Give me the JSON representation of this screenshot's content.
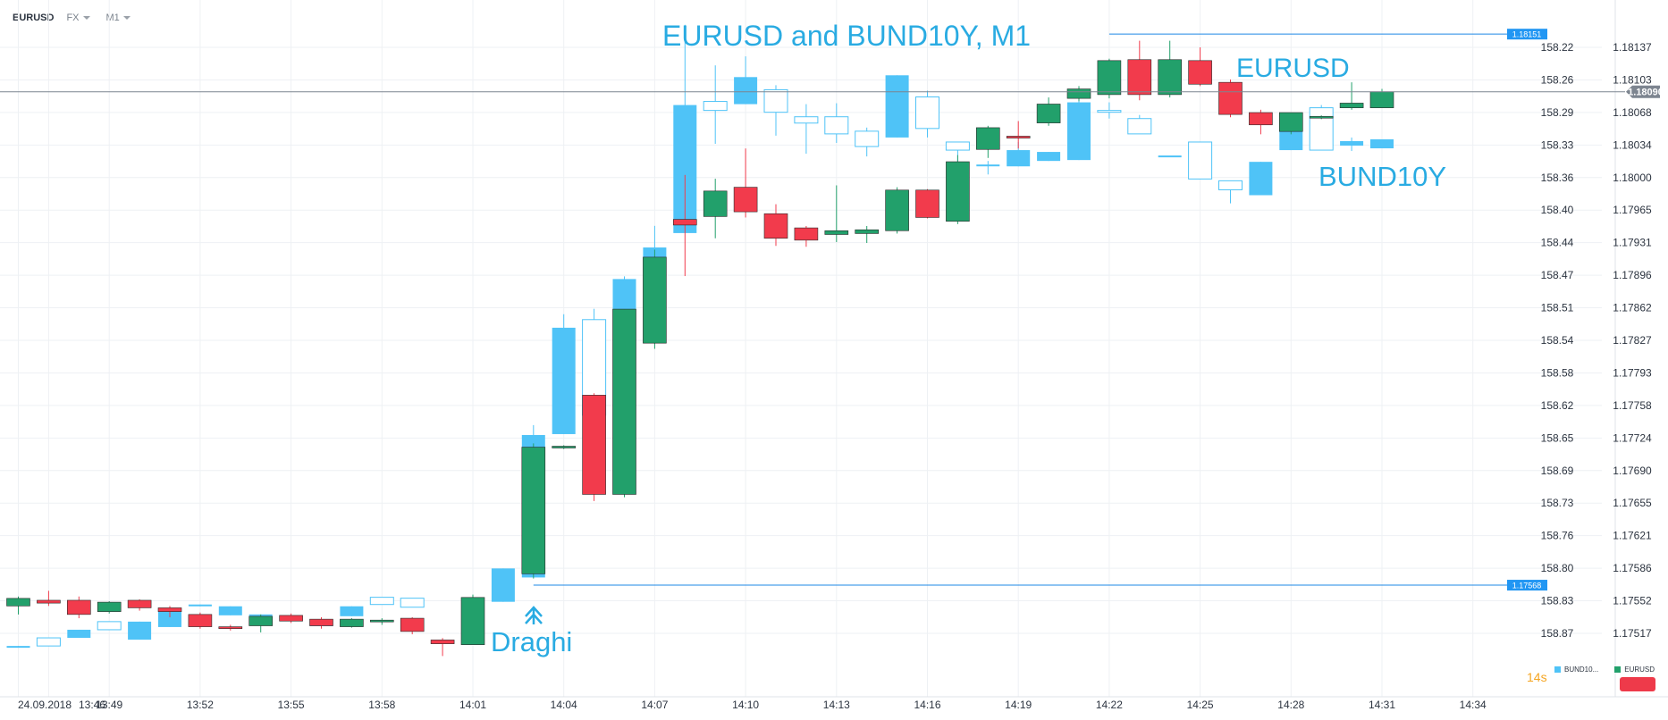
{
  "topbar": {
    "symbol": "EURUSD",
    "market": "FX",
    "timeframe": "M1"
  },
  "annotations": {
    "title": "EURUSD and BUND10Y, M1",
    "eurusd": "EURUSD",
    "bund": "BUND10Y",
    "draghi": "Draghi",
    "arrow_icon": "up-arrow-icon"
  },
  "timer": {
    "value": "14",
    "unit": "s"
  },
  "colors": {
    "up": "#22a06b",
    "down": "#f23b4c",
    "bund": "#4fc3f7",
    "bund_hollow": "#4fc3f7",
    "line": "#1e88e5",
    "grid": "#eef1f4"
  },
  "chart_data": {
    "type": "candlestick",
    "title": "EURUSD and BUND10Y, M1",
    "x_ticks": [
      {
        "i": 0,
        "label": "24.09.2018"
      },
      {
        "i": 1,
        "label": "13:46"
      },
      {
        "i": 3,
        "label": "13:49"
      },
      {
        "i": 6,
        "label": "13:52"
      },
      {
        "i": 9,
        "label": "13:55"
      },
      {
        "i": 12,
        "label": "13:58"
      },
      {
        "i": 15,
        "label": "14:01"
      },
      {
        "i": 18,
        "label": "14:04"
      },
      {
        "i": 21,
        "label": "14:07"
      },
      {
        "i": 24,
        "label": "14:10"
      },
      {
        "i": 27,
        "label": "14:13"
      },
      {
        "i": 30,
        "label": "14:16"
      },
      {
        "i": 33,
        "label": "14:19"
      },
      {
        "i": 36,
        "label": "14:22"
      },
      {
        "i": 39,
        "label": "14:25"
      },
      {
        "i": 42,
        "label": "14:28"
      },
      {
        "i": 45,
        "label": "14:31"
      },
      {
        "i": 48,
        "label": "14:34"
      }
    ],
    "y_ticks_bund": [
      "158.22",
      "158.26",
      "158.29",
      "158.33",
      "158.36",
      "158.40",
      "158.44",
      "158.47",
      "158.51",
      "158.54",
      "158.58",
      "158.62",
      "158.65",
      "158.69",
      "158.73",
      "158.76",
      "158.80",
      "158.83",
      "158.87"
    ],
    "y_ticks_eurusd": [
      "1.18137",
      "1.18103",
      "1.18068",
      "1.18034",
      "1.18000",
      "1.17965",
      "1.17931",
      "1.17896",
      "1.17862",
      "1.17827",
      "1.17793",
      "1.17758",
      "1.17724",
      "1.17690",
      "1.17655",
      "1.17621",
      "1.17586",
      "1.17552",
      "1.17517"
    ],
    "eurusd_range": [
      1.17517,
      1.18137
    ],
    "horizontal_lines": [
      {
        "value": 1.18151,
        "label": "1.18151",
        "from_i": 36
      },
      {
        "value": 1.17568,
        "label": "1.17568",
        "from_i": 17
      }
    ],
    "current_price": {
      "value": 1.1809,
      "label": "1.18090"
    },
    "legend": [
      {
        "name": "BUND10...",
        "color": "#4fc3f7"
      },
      {
        "name": "EURUSD",
        "color": "#22a06b"
      }
    ],
    "eurusd_series": [
      {
        "i": 0,
        "o": 1.17546,
        "h": 1.17556,
        "l": 1.17537,
        "c": 1.17554
      },
      {
        "i": 1,
        "o": 1.17552,
        "h": 1.17562,
        "l": 1.17546,
        "c": 1.17549
      },
      {
        "i": 2,
        "o": 1.17552,
        "h": 1.17556,
        "l": 1.17533,
        "c": 1.17537
      },
      {
        "i": 3,
        "o": 1.1754,
        "h": 1.17551,
        "l": 1.17538,
        "c": 1.1755
      },
      {
        "i": 4,
        "o": 1.17552,
        "h": 1.17553,
        "l": 1.17541,
        "c": 1.17544
      },
      {
        "i": 5,
        "o": 1.17544,
        "h": 1.17546,
        "l": 1.17534,
        "c": 1.1754
      },
      {
        "i": 6,
        "o": 1.17537,
        "h": 1.17539,
        "l": 1.17522,
        "c": 1.17524
      },
      {
        "i": 7,
        "o": 1.17524,
        "h": 1.17526,
        "l": 1.1752,
        "c": 1.17522
      },
      {
        "i": 8,
        "o": 1.17525,
        "h": 1.17537,
        "l": 1.17518,
        "c": 1.17535
      },
      {
        "i": 9,
        "o": 1.17536,
        "h": 1.17538,
        "l": 1.17528,
        "c": 1.1753
      },
      {
        "i": 10,
        "o": 1.17532,
        "h": 1.17534,
        "l": 1.17522,
        "c": 1.17525
      },
      {
        "i": 11,
        "o": 1.17524,
        "h": 1.17533,
        "l": 1.17523,
        "c": 1.17532
      },
      {
        "i": 12,
        "o": 1.1753,
        "h": 1.17533,
        "l": 1.17526,
        "c": 1.17531
      },
      {
        "i": 13,
        "o": 1.17533,
        "h": 1.17534,
        "l": 1.17516,
        "c": 1.17519
      },
      {
        "i": 14,
        "o": 1.1751,
        "h": 1.17512,
        "l": 1.17493,
        "c": 1.17506
      },
      {
        "i": 15,
        "o": 1.17505,
        "h": 1.17558,
        "l": 1.17505,
        "c": 1.17555
      },
      {
        "i": 17,
        "o": 1.1758,
        "h": 1.17718,
        "l": 1.17575,
        "c": 1.17714
      },
      {
        "i": 18,
        "o": 1.17714,
        "h": 1.17716,
        "l": 1.17712,
        "c": 1.17715
      },
      {
        "i": 19,
        "o": 1.17769,
        "h": 1.17771,
        "l": 1.17657,
        "c": 1.17664
      },
      {
        "i": 20,
        "o": 1.17664,
        "h": 1.1786,
        "l": 1.17661,
        "c": 1.1786
      },
      {
        "i": 21,
        "o": 1.17824,
        "h": 1.17923,
        "l": 1.17818,
        "c": 1.17915
      },
      {
        "i": 22,
        "o": 1.17955,
        "h": 1.18002,
        "l": 1.17895,
        "c": 1.17949
      },
      {
        "i": 23,
        "o": 1.17958,
        "h": 1.17998,
        "l": 1.17935,
        "c": 1.17985
      },
      {
        "i": 24,
        "o": 1.17989,
        "h": 1.1803,
        "l": 1.17957,
        "c": 1.17963
      },
      {
        "i": 25,
        "o": 1.17961,
        "h": 1.17971,
        "l": 1.17927,
        "c": 1.17935
      },
      {
        "i": 26,
        "o": 1.17946,
        "h": 1.17948,
        "l": 1.17926,
        "c": 1.17933
      },
      {
        "i": 27,
        "o": 1.17939,
        "h": 1.17991,
        "l": 1.17931,
        "c": 1.17943
      },
      {
        "i": 28,
        "o": 1.1794,
        "h": 1.17948,
        "l": 1.1793,
        "c": 1.17944
      },
      {
        "i": 29,
        "o": 1.17943,
        "h": 1.17989,
        "l": 1.1794,
        "c": 1.17986
      },
      {
        "i": 30,
        "o": 1.17986,
        "h": 1.17987,
        "l": 1.17956,
        "c": 1.17957
      },
      {
        "i": 31,
        "o": 1.17953,
        "h": 1.18023,
        "l": 1.1795,
        "c": 1.18016
      },
      {
        "i": 32,
        "o": 1.18029,
        "h": 1.18054,
        "l": 1.1802,
        "c": 1.18052
      },
      {
        "i": 33,
        "o": 1.18043,
        "h": 1.18059,
        "l": 1.1803,
        "c": 1.18041
      },
      {
        "i": 34,
        "o": 1.18057,
        "h": 1.18084,
        "l": 1.18054,
        "c": 1.18077
      },
      {
        "i": 35,
        "o": 1.18083,
        "h": 1.18096,
        "l": 1.1808,
        "c": 1.18093
      },
      {
        "i": 36,
        "o": 1.18087,
        "h": 1.18125,
        "l": 1.18083,
        "c": 1.18123
      },
      {
        "i": 37,
        "o": 1.18124,
        "h": 1.18144,
        "l": 1.18081,
        "c": 1.18087
      },
      {
        "i": 38,
        "o": 1.18087,
        "h": 1.18144,
        "l": 1.18084,
        "c": 1.18124
      },
      {
        "i": 39,
        "o": 1.18123,
        "h": 1.18137,
        "l": 1.18096,
        "c": 1.18098
      },
      {
        "i": 40,
        "o": 1.181,
        "h": 1.18103,
        "l": 1.18063,
        "c": 1.18066
      },
      {
        "i": 41,
        "o": 1.18068,
        "h": 1.18071,
        "l": 1.18045,
        "c": 1.18055
      },
      {
        "i": 42,
        "o": 1.18048,
        "h": 1.18068,
        "l": 1.18045,
        "c": 1.18068
      },
      {
        "i": 43,
        "o": 1.18063,
        "h": 1.18065,
        "l": 1.18061,
        "c": 1.18064
      },
      {
        "i": 44,
        "o": 1.18073,
        "h": 1.181,
        "l": 1.18071,
        "c": 1.18078
      },
      {
        "i": 45,
        "o": 1.18073,
        "h": 1.18093,
        "l": 1.18073,
        "c": 1.1809
      }
    ],
    "bund_series": [
      {
        "i": 0,
        "o": 158.885,
        "h": 158.886,
        "l": 158.885,
        "c": 158.884,
        "style": "filled"
      },
      {
        "i": 1,
        "o": 158.884,
        "h": 158.875,
        "l": 158.884,
        "c": 158.875,
        "style": "hollow"
      },
      {
        "i": 2,
        "o": 158.875,
        "h": 158.866,
        "l": 158.875,
        "c": 158.866,
        "style": "filled"
      },
      {
        "i": 3,
        "o": 158.866,
        "h": 158.857,
        "l": 158.866,
        "c": 158.857,
        "style": "hollow"
      },
      {
        "i": 4,
        "o": 158.877,
        "h": 158.857,
        "l": 158.877,
        "c": 158.857,
        "style": "filled"
      },
      {
        "i": 5,
        "o": 158.863,
        "h": 158.845,
        "l": 158.863,
        "c": 158.845,
        "style": "filled"
      },
      {
        "i": 6,
        "o": 158.84,
        "h": 158.838,
        "l": 158.84,
        "c": 158.838,
        "style": "filled"
      },
      {
        "i": 7,
        "o": 158.85,
        "h": 158.84,
        "l": 158.85,
        "c": 158.84,
        "style": "filled"
      },
      {
        "i": 8,
        "o": 158.849,
        "h": 158.849,
        "l": 158.849,
        "c": 158.849,
        "style": "filled"
      },
      {
        "i": 10,
        "o": 158.862,
        "h": 158.859,
        "l": 158.862,
        "c": 158.859,
        "style": "filled"
      },
      {
        "i": 11,
        "o": 158.851,
        "h": 158.84,
        "l": 158.851,
        "c": 158.84,
        "style": "filled"
      },
      {
        "i": 12,
        "o": 158.838,
        "h": 158.83,
        "l": 158.838,
        "c": 158.83,
        "style": "hollow"
      },
      {
        "i": 13,
        "o": 158.841,
        "h": 158.831,
        "l": 158.841,
        "c": 158.831,
        "style": "hollow"
      },
      {
        "i": 15,
        "o": 158.845,
        "h": 158.83,
        "l": 158.845,
        "c": 158.83,
        "style": "filled"
      },
      {
        "i": 16,
        "o": 158.835,
        "h": 158.798,
        "l": 158.835,
        "c": 158.798,
        "style": "filled"
      },
      {
        "i": 17,
        "o": 158.808,
        "h": 158.639,
        "l": 158.808,
        "c": 158.65,
        "style": "filled"
      },
      {
        "i": 18,
        "o": 158.649,
        "h": 158.516,
        "l": 158.649,
        "c": 158.531,
        "style": "filled"
      },
      {
        "i": 19,
        "o": 158.628,
        "h": 158.51,
        "l": 158.628,
        "c": 158.522,
        "style": "hollow"
      },
      {
        "i": 20,
        "o": 158.609,
        "h": 158.474,
        "l": 158.609,
        "c": 158.477,
        "style": "filled"
      },
      {
        "i": 21,
        "o": 158.47,
        "h": 158.418,
        "l": 158.47,
        "c": 158.442,
        "style": "filled"
      },
      {
        "i": 22,
        "o": 158.426,
        "h": 158.195,
        "l": 158.426,
        "c": 158.284,
        "style": "filled"
      },
      {
        "i": 23,
        "o": 158.29,
        "h": 158.24,
        "l": 158.327,
        "c": 158.28,
        "style": "hollow"
      },
      {
        "i": 24,
        "o": 158.283,
        "h": 158.23,
        "l": 158.283,
        "c": 158.253,
        "style": "filled"
      },
      {
        "i": 25,
        "o": 158.292,
        "h": 158.262,
        "l": 158.318,
        "c": 158.267,
        "style": "hollow"
      },
      {
        "i": 26,
        "o": 158.304,
        "h": 158.283,
        "l": 158.338,
        "c": 158.297,
        "style": "hollow"
      },
      {
        "i": 27,
        "o": 158.316,
        "h": 158.282,
        "l": 158.326,
        "c": 158.297,
        "style": "hollow"
      },
      {
        "i": 28,
        "o": 158.33,
        "h": 158.309,
        "l": 158.341,
        "c": 158.313,
        "style": "hollow"
      },
      {
        "i": 29,
        "o": 158.32,
        "h": 158.251,
        "l": 158.32,
        "c": 158.251,
        "style": "filled"
      },
      {
        "i": 30,
        "o": 158.31,
        "h": 158.268,
        "l": 158.32,
        "c": 158.275,
        "style": "hollow"
      },
      {
        "i": 31,
        "o": 158.334,
        "h": 158.325,
        "l": 158.37,
        "c": 158.325,
        "style": "hollow"
      },
      {
        "i": 32,
        "o": 158.35,
        "h": 158.346,
        "l": 158.361,
        "c": 158.35,
        "style": "filled"
      },
      {
        "i": 33,
        "o": 158.352,
        "h": 158.325,
        "l": 158.352,
        "c": 158.334,
        "style": "filled"
      },
      {
        "i": 34,
        "o": 158.346,
        "h": 158.336,
        "l": 158.346,
        "c": 158.336,
        "style": "filled"
      },
      {
        "i": 35,
        "o": 158.345,
        "h": 158.277,
        "l": 158.345,
        "c": 158.281,
        "style": "filled"
      },
      {
        "i": 36,
        "o": 158.29,
        "h": 158.281,
        "l": 158.299,
        "c": 158.29,
        "style": "hollow"
      },
      {
        "i": 37,
        "o": 158.316,
        "h": 158.295,
        "l": 158.316,
        "c": 158.299,
        "style": "hollow"
      },
      {
        "i": 38,
        "o": 158.34,
        "h": 158.34,
        "l": 158.34,
        "c": 158.34,
        "style": "filled"
      },
      {
        "i": 39,
        "o": 158.366,
        "h": 158.325,
        "l": 158.366,
        "c": 158.325,
        "style": "hollow"
      },
      {
        "i": 40,
        "o": 158.378,
        "h": 158.368,
        "l": 158.393,
        "c": 158.368,
        "style": "hollow"
      },
      {
        "i": 41,
        "o": 158.384,
        "h": 158.347,
        "l": 158.384,
        "c": 158.347,
        "style": "filled"
      },
      {
        "i": 42,
        "o": 158.334,
        "h": 158.295,
        "l": 158.334,
        "c": 158.295,
        "style": "filled"
      },
      {
        "i": 43,
        "o": 158.334,
        "h": 158.284,
        "l": 158.334,
        "c": 158.287,
        "style": "hollow"
      },
      {
        "i": 44,
        "o": 158.329,
        "h": 158.32,
        "l": 158.335,
        "c": 158.324,
        "style": "filled"
      },
      {
        "i": 45,
        "o": 158.332,
        "h": 158.322,
        "l": 158.332,
        "c": 158.322,
        "style": "filled"
      }
    ]
  }
}
